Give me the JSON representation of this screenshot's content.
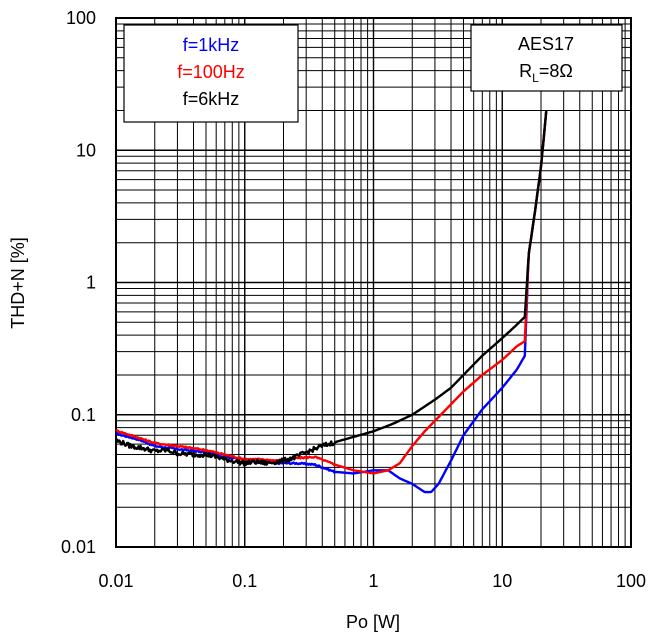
{
  "chart_data": {
    "type": "line",
    "title": "",
    "xlabel": "Po [W]",
    "ylabel": "THD+N [%]",
    "x_scale": "log",
    "y_scale": "log",
    "xlim": [
      0.01,
      100
    ],
    "ylim": [
      0.01,
      100
    ],
    "x_ticks": [
      0.01,
      0.1,
      1,
      10,
      100
    ],
    "x_tick_labels": [
      "0.01",
      "0.1",
      "1",
      "10",
      "100"
    ],
    "y_ticks": [
      0.01,
      0.1,
      1,
      10,
      100
    ],
    "y_tick_labels": [
      "0.01",
      "0.1",
      "1",
      "10",
      "100"
    ],
    "grid": true,
    "legend": {
      "placement": "top-left",
      "entries": [
        {
          "label": "f=1kHz",
          "color": "#0000ff"
        },
        {
          "label": "f=100Hz",
          "color": "#ff0000"
        },
        {
          "label": "f=6kHz",
          "color": "#000000"
        }
      ]
    },
    "annotation": {
      "placement": "top-right",
      "line1": "AES17",
      "line2_main": "R",
      "line2_sub": "L",
      "line2_rest": "=8Ω"
    },
    "series": [
      {
        "name": "f=1kHz",
        "color": "#0000ff",
        "x": [
          0.01,
          0.015,
          0.02,
          0.03,
          0.05,
          0.07,
          0.1,
          0.13,
          0.18,
          0.25,
          0.35,
          0.5,
          0.7,
          1.0,
          1.3,
          1.6,
          2.0,
          2.5,
          2.8,
          3.2,
          4.0,
          5.0,
          7.0,
          10,
          13,
          15,
          16,
          18,
          20,
          22
        ],
        "y": [
          0.072,
          0.065,
          0.058,
          0.055,
          0.052,
          0.048,
          0.046,
          0.045,
          0.043,
          0.043,
          0.042,
          0.037,
          0.036,
          0.038,
          0.038,
          0.033,
          0.03,
          0.026,
          0.026,
          0.03,
          0.045,
          0.07,
          0.11,
          0.16,
          0.22,
          0.28,
          1.6,
          3.5,
          7.5,
          20
        ]
      },
      {
        "name": "f=100Hz",
        "color": "#ff0000",
        "x": [
          0.01,
          0.015,
          0.02,
          0.03,
          0.05,
          0.07,
          0.1,
          0.13,
          0.18,
          0.25,
          0.35,
          0.5,
          0.7,
          1.0,
          1.3,
          1.6,
          2.0,
          2.5,
          3.0,
          4.0,
          5.0,
          7.0,
          10,
          13,
          15,
          16,
          18,
          20,
          22
        ],
        "y": [
          0.076,
          0.067,
          0.061,
          0.058,
          0.054,
          0.05,
          0.046,
          0.046,
          0.045,
          0.047,
          0.048,
          0.042,
          0.038,
          0.036,
          0.038,
          0.043,
          0.058,
          0.075,
          0.09,
          0.12,
          0.15,
          0.2,
          0.26,
          0.33,
          0.36,
          1.6,
          3.5,
          7.5,
          20
        ]
      },
      {
        "name": "f=6kHz",
        "color": "#000000",
        "x": [
          0.01,
          0.013,
          0.016,
          0.02,
          0.025,
          0.03,
          0.04,
          0.05,
          0.06,
          0.07,
          0.08,
          0.1,
          0.12,
          0.15,
          0.2,
          0.25,
          0.3,
          0.4,
          0.5,
          0.7,
          1.0,
          1.4,
          2.0,
          3.0,
          4.0,
          5.0,
          7.0,
          10,
          13,
          15,
          16,
          18,
          20,
          22
        ],
        "y": [
          0.064,
          0.058,
          0.056,
          0.053,
          0.054,
          0.051,
          0.05,
          0.05,
          0.048,
          0.046,
          0.045,
          0.043,
          0.044,
          0.043,
          0.045,
          0.048,
          0.052,
          0.058,
          0.062,
          0.068,
          0.075,
          0.085,
          0.1,
          0.13,
          0.16,
          0.2,
          0.28,
          0.38,
          0.48,
          0.55,
          1.6,
          3.5,
          7.5,
          20
        ]
      }
    ]
  }
}
